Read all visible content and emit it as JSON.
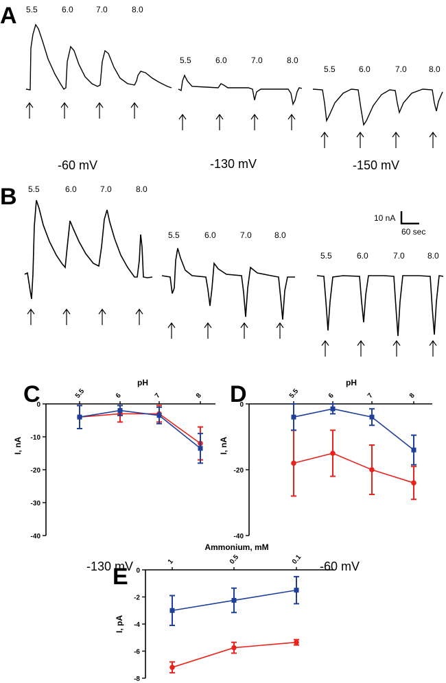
{
  "panels": {
    "A": {
      "letter": "A",
      "groups": [
        {
          "voltage": "-60 mV",
          "ph_labels": [
            "5.5",
            "6.0",
            "7.0",
            "8.0"
          ]
        },
        {
          "voltage": "-130 mV",
          "ph_labels": [
            "5.5",
            "6.0",
            "7.0",
            "8.0"
          ]
        },
        {
          "voltage": "-150 mV",
          "ph_labels": [
            "5.5",
            "6.0",
            "7.0",
            "8.0"
          ]
        }
      ]
    },
    "B": {
      "letter": "B",
      "groups": [
        {
          "ph_labels": [
            "5.5",
            "6.0",
            "7.0",
            "8.0"
          ]
        },
        {
          "ph_labels": [
            "5.5",
            "6.0",
            "7.0",
            "8.0"
          ]
        },
        {
          "ph_labels": [
            "5.5",
            "6.0",
            "7.0",
            "8.0"
          ]
        }
      ],
      "scale_bar": {
        "current": "10 nA",
        "time": "60 sec"
      }
    }
  },
  "colors": {
    "red": "#e8241c",
    "blue": "#1f3f9a",
    "black": "#000000"
  },
  "chart_data": [
    {
      "id": "C",
      "letter": "C",
      "type": "line",
      "xlabel": "pH",
      "ylabel": "I, nA",
      "categories": [
        "5.5",
        "6",
        "7",
        "8"
      ],
      "ylim": [
        -40,
        0
      ],
      "yticks": [
        "0",
        "-10",
        "-20",
        "-30",
        "-40"
      ],
      "caption": "-130 mV",
      "series": [
        {
          "color": "red",
          "marker": "circle",
          "values": [
            -4,
            -3,
            -3,
            -12
          ],
          "err": [
            3.5,
            2.5,
            2.5,
            5
          ]
        },
        {
          "color": "blue",
          "marker": "square",
          "values": [
            -4,
            -2,
            -3.5,
            -13.5
          ],
          "err": [
            3.5,
            1.5,
            2.5,
            4.5
          ]
        }
      ]
    },
    {
      "id": "D",
      "letter": "D",
      "type": "line",
      "xlabel": "pH",
      "ylabel": "I, nA",
      "categories": [
        "5.5",
        "6",
        "7",
        "8"
      ],
      "ylim": [
        -40,
        0
      ],
      "yticks": [
        "0",
        "-20",
        "-40"
      ],
      "caption": "-60 mV",
      "series": [
        {
          "color": "red",
          "marker": "circle",
          "values": [
            -18,
            -15,
            -20,
            -24
          ],
          "err": [
            10,
            7,
            7.5,
            5
          ]
        },
        {
          "color": "blue",
          "marker": "square",
          "values": [
            -4,
            -1.5,
            -4,
            -14
          ],
          "err": [
            4,
            1.5,
            2.5,
            4.5
          ]
        }
      ]
    },
    {
      "id": "E",
      "letter": "E",
      "type": "line",
      "xlabel": "Ammonium, mM",
      "ylabel": "I, pA",
      "categories": [
        "1",
        "0.5",
        "0.1"
      ],
      "ylim": [
        -8,
        0
      ],
      "yticks": [
        "0",
        "-2",
        "-4",
        "-6",
        "-8"
      ],
      "series": [
        {
          "color": "blue",
          "marker": "square",
          "values": [
            -3,
            -2.25,
            -1.5
          ],
          "err": [
            1.1,
            0.9,
            1.0
          ]
        },
        {
          "color": "red",
          "marker": "circle",
          "values": [
            -7.2,
            -5.75,
            -5.35
          ],
          "err": [
            0.4,
            0.4,
            0.2
          ]
        }
      ]
    }
  ]
}
